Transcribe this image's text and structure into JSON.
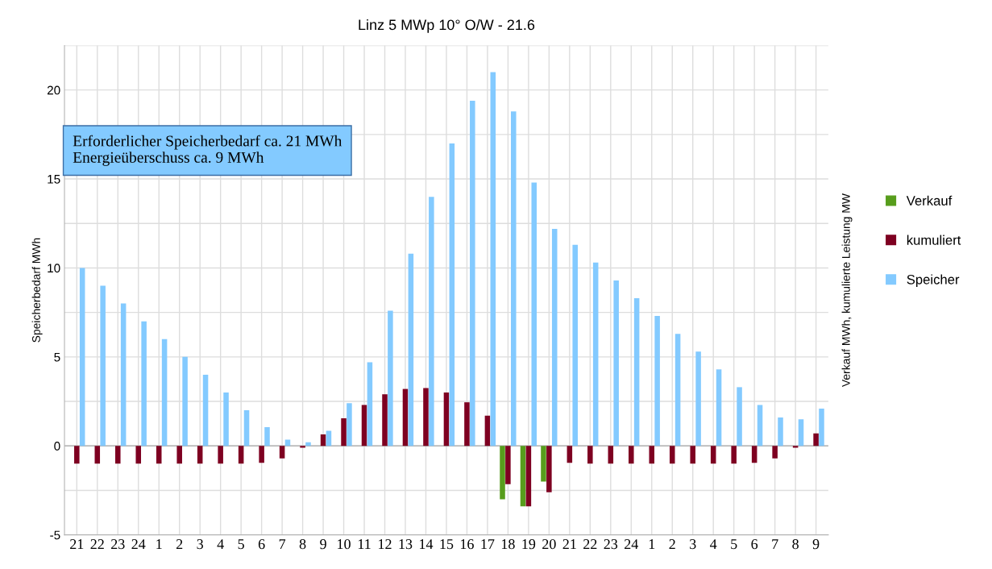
{
  "chart_data": {
    "type": "bar",
    "title": "Linz 5 MWp 10° O/W - 21.6",
    "ylabel": "Speicherbedarf MWh",
    "y2label": "Verkauf MWh, kumulierte Leistung MW",
    "annotations": [
      "Erforderlicher Speicherbedarf ca. 21 MWh\nEnergieüberschuss ca. 9 MWh"
    ],
    "categories": [
      "21",
      "22",
      "23",
      "24",
      "1",
      "2",
      "3",
      "4",
      "5",
      "6",
      "7",
      "8",
      "9",
      "10",
      "11",
      "12",
      "13",
      "14",
      "15",
      "16",
      "17",
      "18",
      "19",
      "20",
      "21",
      "22",
      "23",
      "24",
      "1",
      "2",
      "3",
      "4",
      "5",
      "6",
      "7",
      "8",
      "9"
    ],
    "series": [
      {
        "name": "Verkauf",
        "color": "#579d1c",
        "values": [
          null,
          null,
          null,
          null,
          null,
          null,
          null,
          null,
          null,
          null,
          null,
          null,
          null,
          null,
          null,
          null,
          null,
          null,
          null,
          null,
          null,
          -3.0,
          -3.4,
          -2.0,
          null,
          null,
          null,
          null,
          null,
          null,
          null,
          null,
          null,
          null,
          null,
          null,
          null
        ]
      },
      {
        "name": "kumuliert",
        "color": "#7e0021",
        "values": [
          -1,
          -1,
          -1,
          -1,
          -1,
          -1,
          -1,
          -1,
          -1,
          -0.95,
          -0.7,
          -0.1,
          0.65,
          1.55,
          2.3,
          2.9,
          3.2,
          3.25,
          3.0,
          2.45,
          1.7,
          -2.15,
          -3.4,
          -2.6,
          -0.95,
          -1,
          -1,
          -1,
          -1,
          -1,
          -1,
          -1,
          -1,
          -0.95,
          -0.7,
          -0.1,
          0.7
        ]
      },
      {
        "name": "Speicher",
        "color": "#83caff",
        "values": [
          10,
          9,
          8,
          7,
          6,
          5,
          4,
          3,
          2,
          1.05,
          0.35,
          0.2,
          0.85,
          2.4,
          4.7,
          7.6,
          10.8,
          14.0,
          17.0,
          19.4,
          21.0,
          18.8,
          14.8,
          12.2,
          11.3,
          10.3,
          9.3,
          8.3,
          7.3,
          6.3,
          5.3,
          4.3,
          3.3,
          2.3,
          1.6,
          1.5,
          2.1
        ]
      }
    ],
    "ylim": [
      -5,
      22.5
    ],
    "yticks": [
      -5,
      {
        "value": -2.5,
        "label": null
      },
      0,
      {
        "value": 2.5,
        "label": null
      },
      5,
      {
        "value": 7.5,
        "label": null
      },
      10,
      {
        "value": 12.5,
        "label": null
      },
      15,
      {
        "value": 17.5,
        "label": null
      },
      20,
      {
        "value": 22.5,
        "label": null
      }
    ],
    "grid": true,
    "legend": "right"
  }
}
